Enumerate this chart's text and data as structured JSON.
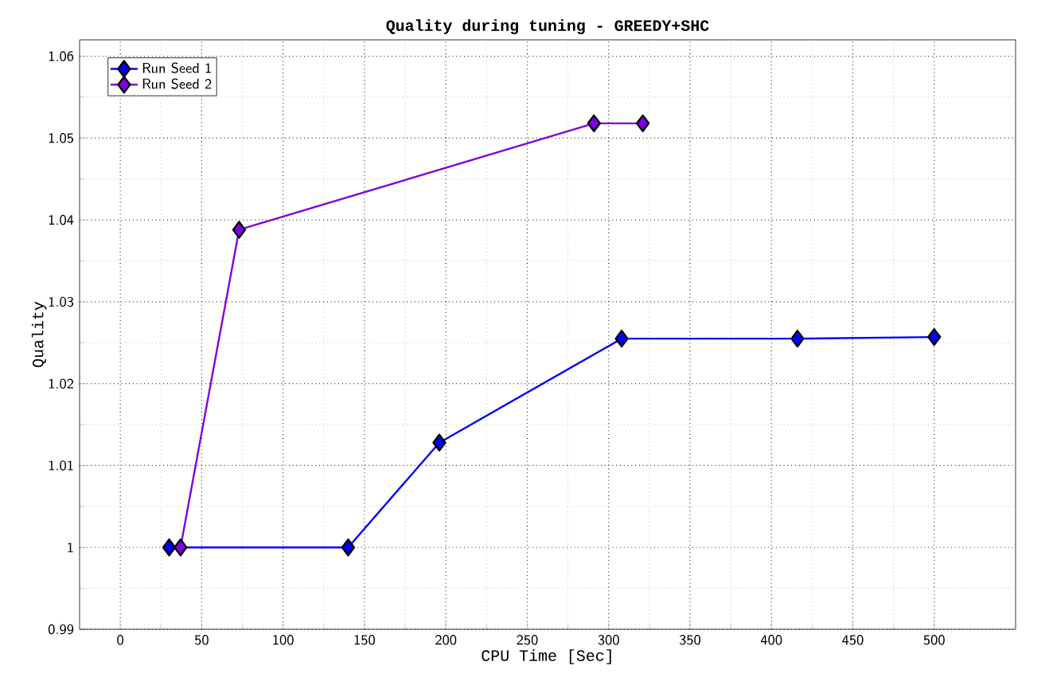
{
  "chart_data": {
    "type": "line",
    "title": "Quality during tuning - GREEDY+SHC",
    "xlabel": "CPU Time [Sec]",
    "ylabel": "Quality",
    "xlim": [
      -25,
      550
    ],
    "xticks": [
      0,
      50,
      100,
      150,
      200,
      250,
      300,
      350,
      400,
      450,
      500
    ],
    "ylim": [
      0.99,
      1.062
    ],
    "yticks": [
      0.99,
      1,
      1.01,
      1.02,
      1.03,
      1.04,
      1.05,
      1.06
    ],
    "grid": true,
    "legend": "top left",
    "marker": "diamond",
    "line_style": "solid",
    "series": [
      {
        "name": "Run Seed 1",
        "color": "#0000ff",
        "x": [
          30,
          140,
          196,
          308,
          416,
          500
        ],
        "values": [
          1.0,
          1.0,
          1.0128,
          1.0255,
          1.0255,
          1.0257
        ]
      },
      {
        "name": "Run Seed 2",
        "color": "#8000e0",
        "x": [
          37,
          73,
          291,
          321
        ],
        "values": [
          1.0,
          1.0388,
          1.0518,
          1.0518
        ]
      }
    ]
  }
}
